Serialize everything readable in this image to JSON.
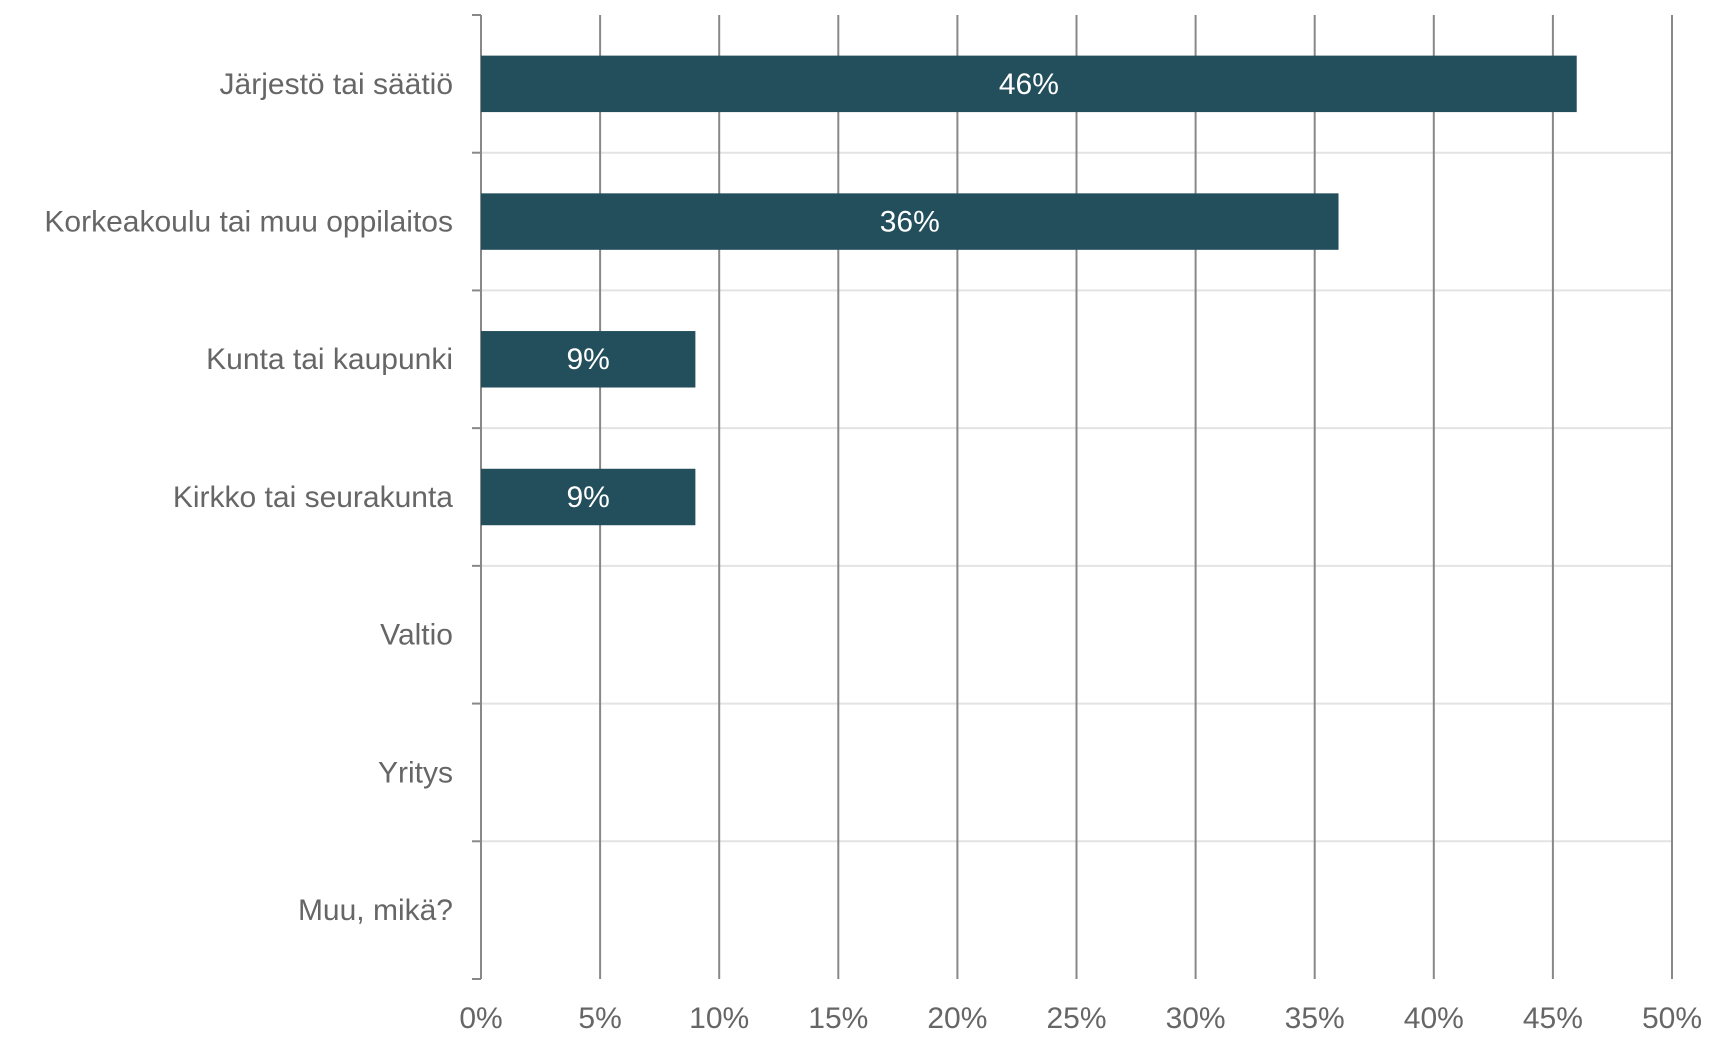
{
  "chart_data": {
    "type": "hbar",
    "categories": [
      "Järjestö tai säätiö",
      "Korkeakoulu tai muu oppilaitos",
      "Kunta tai kaupunki",
      "Kirkko tai seurakunta",
      "Valtio",
      "Yritys",
      "Muu, mikä?"
    ],
    "values": [
      46,
      36,
      9,
      9,
      0,
      0,
      0
    ],
    "value_labels": [
      "46%",
      "36%",
      "9%",
      "9%",
      null,
      null,
      null
    ],
    "color": "#234e5c",
    "xlim": [
      0,
      50
    ],
    "xticks": [
      {
        "value": 0,
        "label": "0%"
      },
      {
        "value": 5,
        "label": "5%"
      },
      {
        "value": 10,
        "label": "10%"
      },
      {
        "value": 15,
        "label": "15%"
      },
      {
        "value": 20,
        "label": "20%"
      },
      {
        "value": 25,
        "label": "25%"
      },
      {
        "value": 30,
        "label": "30%"
      },
      {
        "value": 35,
        "label": "35%"
      },
      {
        "value": 40,
        "label": "40%"
      },
      {
        "value": 45,
        "label": "45%"
      },
      {
        "value": 50,
        "label": "50%"
      }
    ],
    "grid": true
  }
}
